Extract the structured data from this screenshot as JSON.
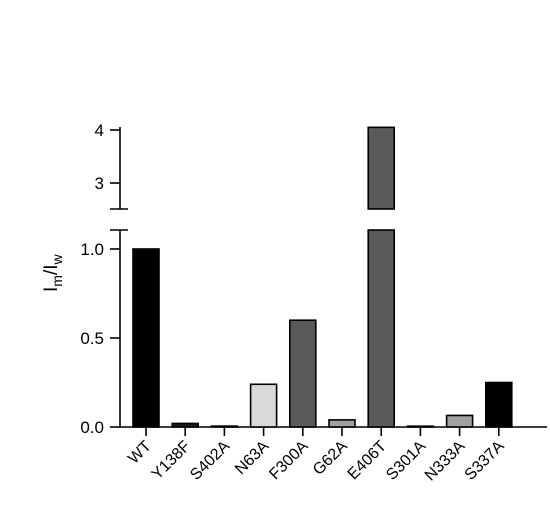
{
  "chart_data": {
    "type": "bar",
    "ylabel": "I",
    "ylabel_sub_1": "m",
    "ylabel_mid": "/I",
    "ylabel_sub_2": "w",
    "categories": [
      "WT",
      "Y138F",
      "S402A",
      "N63A",
      "F300A",
      "G62A",
      "E406T",
      "S301A",
      "N333A",
      "S337A"
    ],
    "values": [
      1.0,
      0.02,
      0.005,
      0.24,
      0.6,
      0.04,
      4.05,
      0.0,
      0.065,
      0.25
    ],
    "colors": [
      "#000000",
      "#1a1a1a",
      "#1a1a1a",
      "#d9d9d9",
      "#5a5a5a",
      "#a0a0a0",
      "#5a5a5a",
      "#1a1a1a",
      "#a0a0a0",
      "#000000"
    ],
    "axis_break": {
      "lower_range": [
        0,
        1.0
      ],
      "upper_range": [
        2.6,
        4.0
      ]
    },
    "lower_ticks": [
      "0.0",
      "0.5",
      "1.0"
    ],
    "upper_ticks": [
      "3",
      "4"
    ],
    "grid": false,
    "legend": "none"
  }
}
